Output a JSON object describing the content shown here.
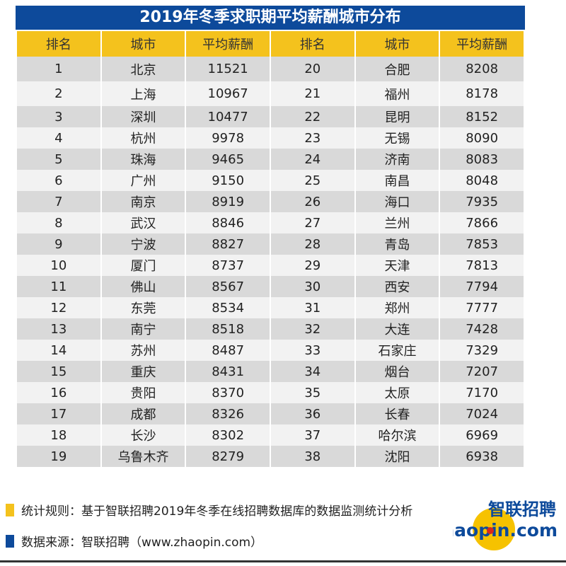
{
  "title": "2019年冬季求职期平均薪酬城市分布",
  "headers": [
    "排名",
    "城市",
    "平均薪酬",
    "排名",
    "城市",
    "平均薪酬"
  ],
  "rows": [
    [
      "1",
      "北京",
      "11521",
      "20",
      "合肥",
      "8208"
    ],
    [
      "2",
      "上海",
      "10967",
      "21",
      "福州",
      "8178"
    ],
    [
      "3",
      "深圳",
      "10477",
      "22",
      "昆明",
      "8152"
    ],
    [
      "4",
      "杭州",
      "9978",
      "23",
      "无锡",
      "8090"
    ],
    [
      "5",
      "珠海",
      "9465",
      "24",
      "济南",
      "8083"
    ],
    [
      "6",
      "广州",
      "9150",
      "25",
      "南昌",
      "8048"
    ],
    [
      "7",
      "南京",
      "8919",
      "26",
      "海口",
      "7935"
    ],
    [
      "8",
      "武汉",
      "8846",
      "27",
      "兰州",
      "7866"
    ],
    [
      "9",
      "宁波",
      "8827",
      "28",
      "青岛",
      "7853"
    ],
    [
      "10",
      "厦门",
      "8737",
      "29",
      "天津",
      "7813"
    ],
    [
      "11",
      "佛山",
      "8567",
      "30",
      "西安",
      "7794"
    ],
    [
      "12",
      "东莞",
      "8534",
      "31",
      "郑州",
      "7777"
    ],
    [
      "13",
      "南宁",
      "8518",
      "32",
      "大连",
      "7428"
    ],
    [
      "14",
      "苏州",
      "8487",
      "33",
      "石家庄",
      "7329"
    ],
    [
      "15",
      "重庆",
      "8431",
      "34",
      "烟台",
      "7207"
    ],
    [
      "16",
      "贵阳",
      "8370",
      "35",
      "太原",
      "7170"
    ],
    [
      "17",
      "成都",
      "8326",
      "36",
      "长春",
      "7024"
    ],
    [
      "18",
      "长沙",
      "8302",
      "37",
      "哈尔滨",
      "6969"
    ],
    [
      "19",
      "乌鲁木齐",
      "8279",
      "38",
      "沈阳",
      "6938"
    ]
  ],
  "notes": {
    "rule": "统计规则：基于智联招聘2019年冬季在线招聘数据库的数据监测统计分析",
    "source": "数据来源：智联招聘（www.zhaopin.com）"
  },
  "logo": {
    "cn": "智联招聘",
    "en": "zhaopin.com"
  },
  "colors": {
    "title_bg": "#0d4a9b",
    "header_bg": "#f4c21d",
    "row_odd": "#d9d9d9",
    "row_even": "#f2f2f2"
  }
}
